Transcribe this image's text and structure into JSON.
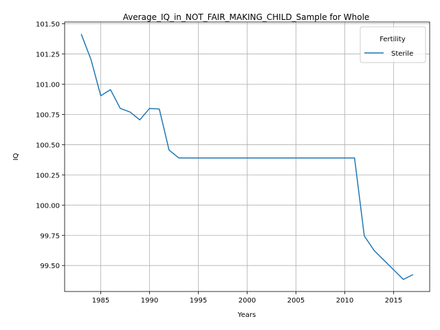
{
  "chart_data": {
    "type": "line",
    "title": "Average_IQ_in_NOT_FAIR_MAKING_CHILD_Sample for Whole",
    "xlabel": "Years",
    "ylabel": "IQ",
    "xlim": [
      1981.3,
      2018.7
    ],
    "ylim": [
      99.285,
      101.515
    ],
    "xticks": [
      1985,
      1990,
      1995,
      2000,
      2005,
      2010,
      2015
    ],
    "yticks": [
      99.5,
      99.75,
      100.0,
      100.25,
      100.5,
      100.75,
      101.0,
      101.25,
      101.5
    ],
    "ytick_labels": [
      "99.50",
      "99.75",
      "100.00",
      "100.25",
      "100.50",
      "100.75",
      "101.00",
      "101.25",
      "101.50"
    ],
    "grid": true,
    "legend": {
      "title": "Fertility",
      "placement": "top-right"
    },
    "series": [
      {
        "name": "Sterile",
        "color": "#1f77b4",
        "x": [
          1983,
          1984,
          1985,
          1986,
          1987,
          1988,
          1989,
          1990,
          1991,
          1992,
          1993,
          1994,
          1995,
          1996,
          1997,
          1998,
          1999,
          2000,
          2001,
          2002,
          2003,
          2004,
          2005,
          2006,
          2007,
          2008,
          2009,
          2010,
          2011,
          2012,
          2013,
          2014,
          2015,
          2016,
          2017
        ],
        "y": [
          101.415,
          101.205,
          100.905,
          100.955,
          100.8,
          100.77,
          100.705,
          100.8,
          100.795,
          100.455,
          100.39,
          100.39,
          100.39,
          100.39,
          100.39,
          100.39,
          100.39,
          100.39,
          100.39,
          100.39,
          100.39,
          100.39,
          100.39,
          100.39,
          100.39,
          100.39,
          100.39,
          100.39,
          100.39,
          99.745,
          99.625,
          99.545,
          99.465,
          99.385,
          99.425
        ]
      }
    ]
  }
}
